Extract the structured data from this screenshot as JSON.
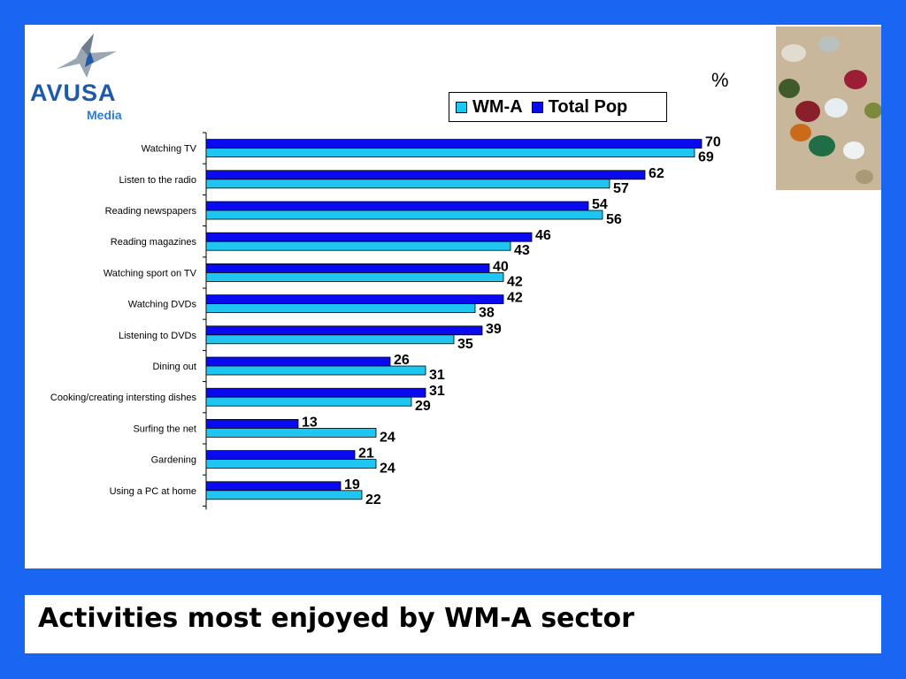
{
  "slide": {
    "title": "Activities most enjoyed by WM-A sector",
    "unit": "%"
  },
  "logo": {
    "name": "AVUSA",
    "subtitle": "Media"
  },
  "colors": {
    "frame": "#1a66f2",
    "series_wma": "#1fc6f2",
    "series_total": "#0a0af0"
  },
  "chart_data": {
    "type": "bar",
    "orientation": "horizontal",
    "categories": [
      "Watching TV",
      "Listen to the radio",
      "Reading newspapers",
      "Reading magazines",
      "Watching sport on TV",
      "Watching DVDs",
      "Listening to DVDs",
      "Dining out",
      "Cooking/creating intersting dishes",
      "Surfing the net",
      "Gardening",
      "Using a PC at home"
    ],
    "series": [
      {
        "name": "WM-A",
        "color": "#1fc6f2",
        "values": [
          69,
          57,
          56,
          43,
          42,
          38,
          35,
          31,
          29,
          24,
          24,
          22
        ]
      },
      {
        "name": "Total Pop",
        "color": "#0a0af0",
        "values": [
          70,
          62,
          54,
          46,
          40,
          42,
          39,
          26,
          31,
          13,
          21,
          19
        ]
      }
    ],
    "xlim": [
      0,
      100
    ],
    "legend": "top-right",
    "grid": false
  }
}
